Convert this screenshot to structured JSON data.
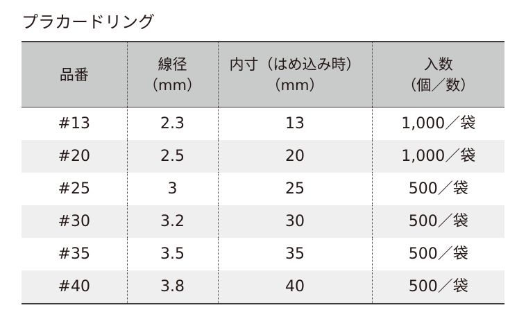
{
  "title": "プラカードリング",
  "table": {
    "headers": [
      {
        "line1": "品番",
        "line2": ""
      },
      {
        "line1": "線径",
        "line2": "（mm）"
      },
      {
        "line1": "内寸（はめ込み時）",
        "line2": "（mm）"
      },
      {
        "line1": "入数",
        "line2": "（個／数）"
      }
    ],
    "rows": [
      {
        "item": "#13",
        "wire": "2.3",
        "inner": "13",
        "qty": "1,000／袋"
      },
      {
        "item": "#20",
        "wire": "2.5",
        "inner": "20",
        "qty": "1,000／袋"
      },
      {
        "item": "#25",
        "wire": "3",
        "inner": "25",
        "qty": "500／袋"
      },
      {
        "item": "#30",
        "wire": "3.2",
        "inner": "30",
        "qty": "500／袋"
      },
      {
        "item": "#35",
        "wire": "3.5",
        "inner": "35",
        "qty": "500／袋"
      },
      {
        "item": "#40",
        "wire": "3.8",
        "inner": "40",
        "qty": "500／袋"
      }
    ]
  },
  "colors": {
    "header_bg": "#c9caca",
    "alt_row_bg": "#efefef",
    "text": "#231815",
    "rule": "#3e3a39"
  }
}
